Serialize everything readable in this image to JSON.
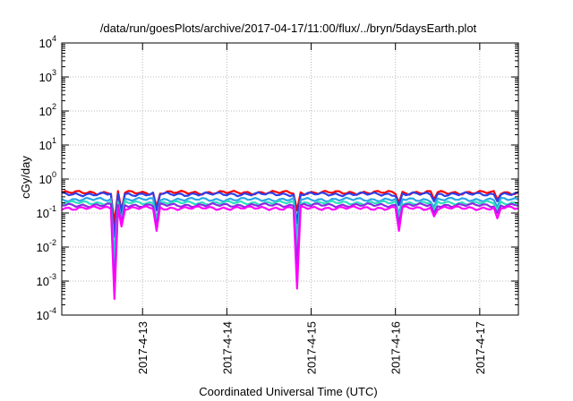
{
  "chart_data": {
    "type": "line",
    "title": "/data/run/goesPlots/archive/2017-04-17/11:00/flux/../bryn/5daysEarth.plot",
    "xlabel": "Coordinated Universal Time (UTC)",
    "ylabel": "cGy/day",
    "yscale": "log",
    "ylim": [
      0.0001,
      10000
    ],
    "xlim": [
      "2017-04-12 01:00",
      "2017-04-17 11:00"
    ],
    "grid": true,
    "y_ticks": [
      {
        "base": "10",
        "exp": "-4",
        "value": 0.0001
      },
      {
        "base": "10",
        "exp": "-3",
        "value": 0.001
      },
      {
        "base": "10",
        "exp": "-2",
        "value": 0.01
      },
      {
        "base": "10",
        "exp": "-1",
        "value": 0.1
      },
      {
        "base": "10",
        "exp": "0",
        "value": 1
      },
      {
        "base": "10",
        "exp": "1",
        "value": 10
      },
      {
        "base": "10",
        "exp": "2",
        "value": 100
      },
      {
        "base": "10",
        "exp": "3",
        "value": 1000
      },
      {
        "base": "10",
        "exp": "4",
        "value": 10000
      }
    ],
    "x_ticks": [
      {
        "label": "2017-4-13",
        "at": "2017-04-13 00:00"
      },
      {
        "label": "2017-4-14",
        "at": "2017-04-14 00:00"
      },
      {
        "label": "2017-4-15",
        "at": "2017-04-15 00:00"
      },
      {
        "label": "2017-4-16",
        "at": "2017-04-16 00:00"
      },
      {
        "label": "2017-4-17",
        "at": "2017-04-17 00:00"
      }
    ],
    "series": [
      {
        "color": "#ff0000",
        "base": 0.4
      },
      {
        "color": "#2f3fe8",
        "base": 0.36
      },
      {
        "color": "#2aa6e6",
        "base": 0.25
      },
      {
        "color": "#2de0c0",
        "base": 0.2
      },
      {
        "color": "#8a2be2",
        "base": 0.17
      },
      {
        "color": "#ff00ff",
        "base": 0.14
      }
    ],
    "dips": [
      {
        "at": "2017-04-12 16:00",
        "values": [
          0.05,
          0.02,
          0.005,
          0.002,
          0.0006,
          0.0003
        ]
      },
      {
        "at": "2017-04-12 18:00",
        "values": [
          0.12,
          0.1,
          0.06,
          0.05,
          0.05,
          0.04
        ]
      },
      {
        "at": "2017-04-13 04:00",
        "values": [
          0.15,
          0.12,
          0.06,
          0.05,
          0.04,
          0.03
        ]
      },
      {
        "at": "2017-04-14 20:00",
        "values": [
          0.12,
          0.05,
          0.02,
          0.01,
          0.003,
          0.0006
        ]
      },
      {
        "at": "2017-04-16 01:00",
        "values": [
          0.2,
          0.17,
          0.09,
          0.07,
          0.05,
          0.03
        ]
      },
      {
        "at": "2017-04-16 11:00",
        "values": [
          0.25,
          0.22,
          0.15,
          0.12,
          0.1,
          0.08
        ]
      },
      {
        "at": "2017-04-17 05:00",
        "values": [
          0.25,
          0.22,
          0.15,
          0.12,
          0.1,
          0.07
        ]
      }
    ]
  }
}
